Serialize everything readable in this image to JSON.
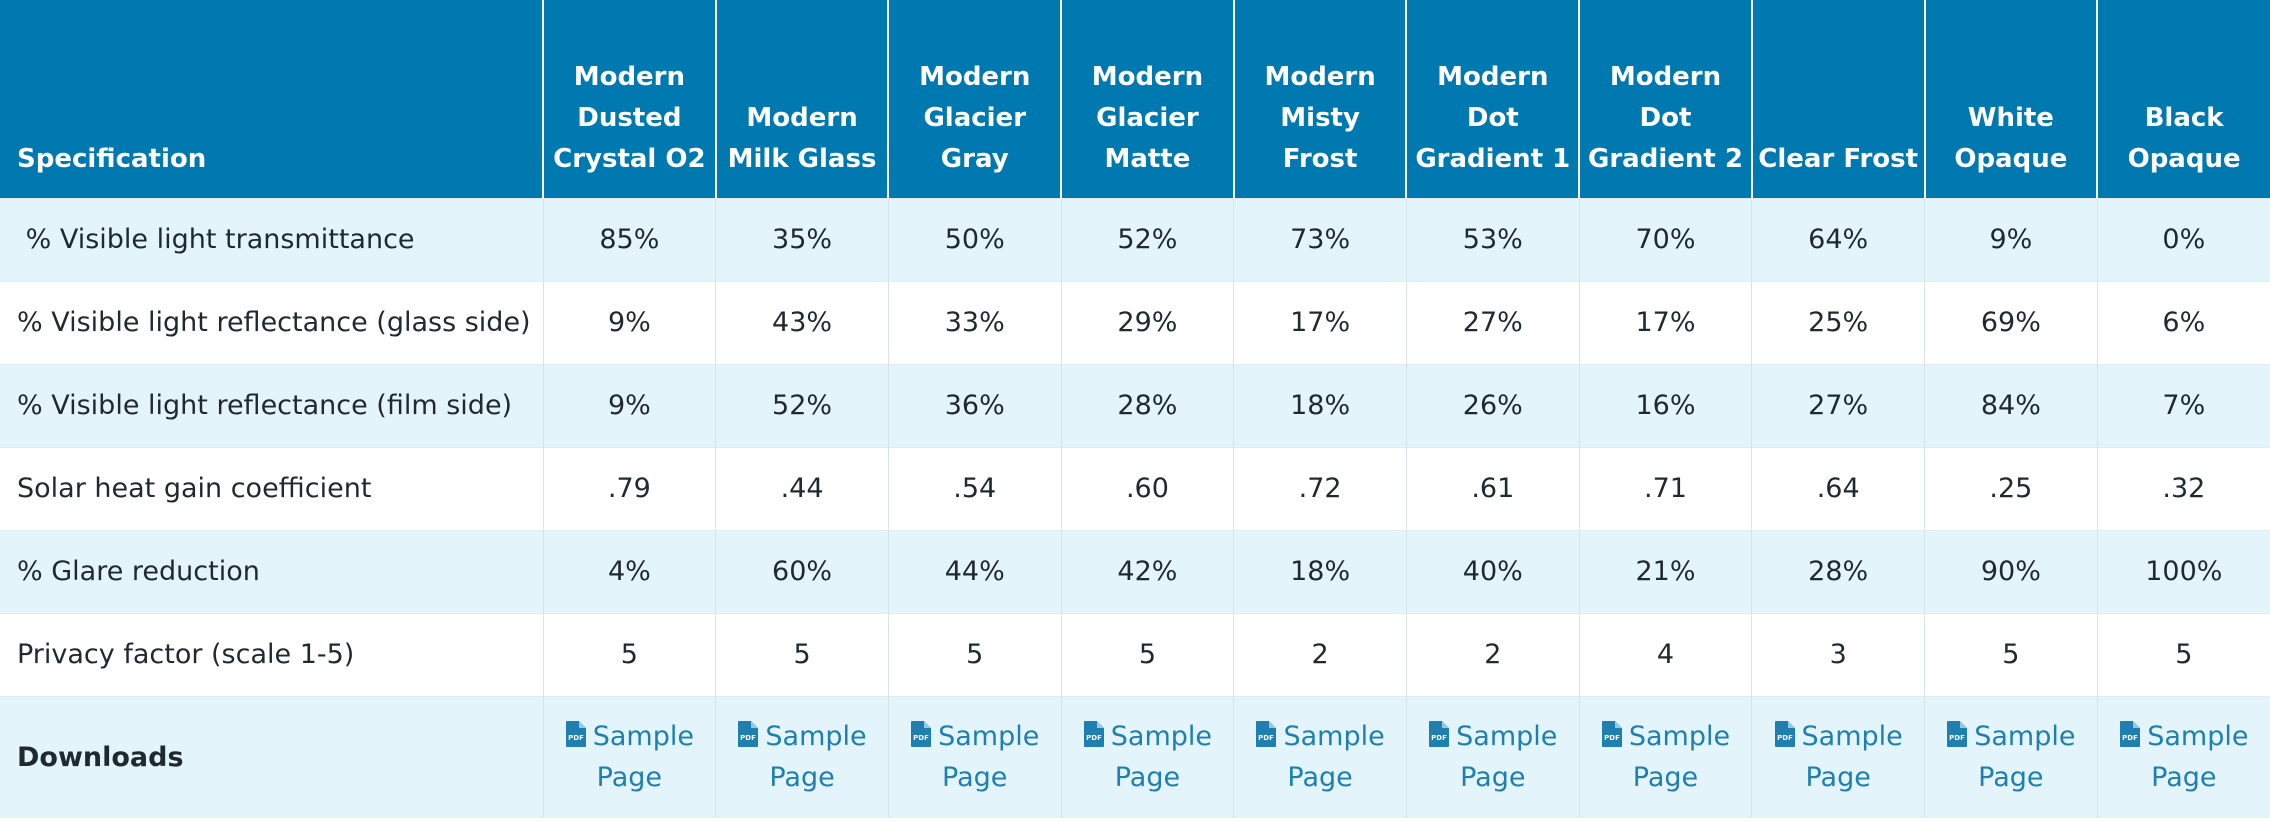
{
  "table": {
    "header_label": "Specification",
    "columns": [
      "Modern Dusted Crystal O2",
      "Modern Milk Glass",
      "Modern Glacier Gray",
      "Modern Glacier Matte",
      "Modern Misty Frost",
      "Modern Dot Gradient 1",
      "Modern Dot Gradient 2",
      "Clear Frost",
      "White Opaque",
      "Black Opaque"
    ],
    "rows": [
      {
        "label": " % Visible light transmittance",
        "values": [
          "85%",
          "35%",
          "50%",
          "52%",
          "73%",
          "53%",
          "70%",
          "64%",
          "9%",
          "0%"
        ]
      },
      {
        "label": "% Visible light reflectance (glass side)",
        "values": [
          "9%",
          "43%",
          "33%",
          "29%",
          "17%",
          "27%",
          "17%",
          "25%",
          "69%",
          "6%"
        ]
      },
      {
        "label": "% Visible light reflectance (film side)",
        "values": [
          "9%",
          "52%",
          "36%",
          "28%",
          "18%",
          "26%",
          "16%",
          "27%",
          "84%",
          "7%"
        ]
      },
      {
        "label": "Solar heat gain coefficient",
        "values": [
          ".79",
          ".44",
          ".54",
          ".60",
          ".72",
          ".61",
          ".71",
          ".64",
          ".25",
          ".32"
        ]
      },
      {
        "label": "% Glare reduction",
        "values": [
          "4%",
          "60%",
          "44%",
          "42%",
          "18%",
          "40%",
          "21%",
          "28%",
          "90%",
          "100%"
        ]
      },
      {
        "label": "Privacy factor (scale 1-5)",
        "values": [
          "5",
          "5",
          "5",
          "5",
          "2",
          "2",
          "4",
          "3",
          "5",
          "5"
        ]
      }
    ],
    "downloads": {
      "label": "Downloads",
      "link_text": "Sample Page",
      "icon": "pdf-file-icon",
      "icon_text": "PDF"
    }
  },
  "colors": {
    "header_bg": "#0079b0",
    "header_text": "#ffffff",
    "row_alt_bg": "#e4f4fb",
    "link": "#1e7fb0"
  }
}
